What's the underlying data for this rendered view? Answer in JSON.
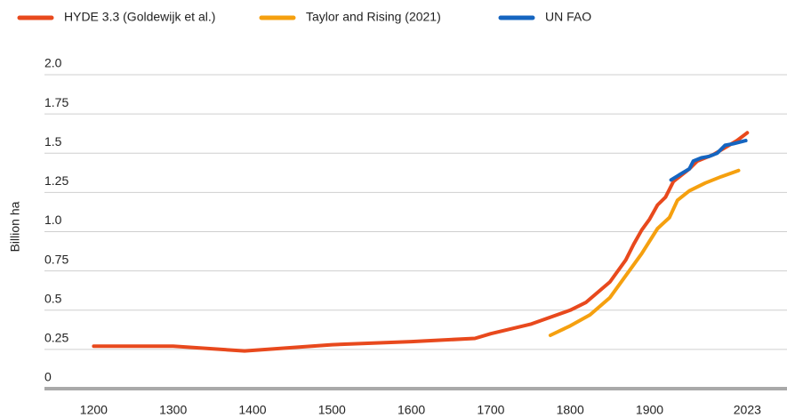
{
  "chart_data": {
    "type": "line",
    "y_label": "Billion ha",
    "xlim": [
      1138,
      2073
    ],
    "ylim": [
      0,
      2
    ],
    "xticks": [
      1200,
      1300,
      1400,
      1500,
      1600,
      1700,
      1800,
      1900,
      2023
    ],
    "yticks": [
      0,
      0.25,
      0.5,
      0.75,
      {
        "value": 1,
        "label": "1.0"
      },
      1.25,
      1.5,
      1.75,
      {
        "value": 2,
        "label": "2.0"
      }
    ],
    "grid": true,
    "legend": "top",
    "series": [
      {
        "name": "HYDE 3.3 (Goldewijk et al.)",
        "color": "#e8491d",
        "x": [
          1200,
          1300,
          1390,
          1500,
          1600,
          1680,
          1700,
          1750,
          1800,
          1820,
          1850,
          1870,
          1880,
          1890,
          1900,
          1910,
          1920,
          1930,
          1940,
          1950,
          1960,
          1970,
          1980,
          1990,
          2000,
          2010,
          2023
        ],
        "values": [
          0.27,
          0.27,
          0.24,
          0.28,
          0.3,
          0.32,
          0.35,
          0.41,
          0.5,
          0.55,
          0.68,
          0.82,
          0.92,
          1.01,
          1.08,
          1.17,
          1.22,
          1.32,
          1.36,
          1.4,
          1.45,
          1.47,
          1.49,
          1.52,
          1.55,
          1.58,
          1.63
        ]
      },
      {
        "name": "Taylor and Rising (2021)",
        "color": "#f5a00f",
        "x": [
          1775,
          1800,
          1825,
          1850,
          1870,
          1890,
          1910,
          1925,
          1935,
          1950,
          1970,
          1990,
          2012
        ],
        "values": [
          0.34,
          0.4,
          0.47,
          0.58,
          0.72,
          0.86,
          1.02,
          1.09,
          1.2,
          1.26,
          1.31,
          1.35,
          1.39
        ]
      },
      {
        "name": "UN FAO",
        "color": "#1565c0",
        "x": [
          1927,
          1940,
          1950,
          1955,
          1965,
          1975,
          1985,
          1995,
          2005,
          2021
        ],
        "values": [
          1.33,
          1.37,
          1.4,
          1.45,
          1.47,
          1.48,
          1.5,
          1.55,
          1.56,
          1.58
        ]
      }
    ]
  }
}
